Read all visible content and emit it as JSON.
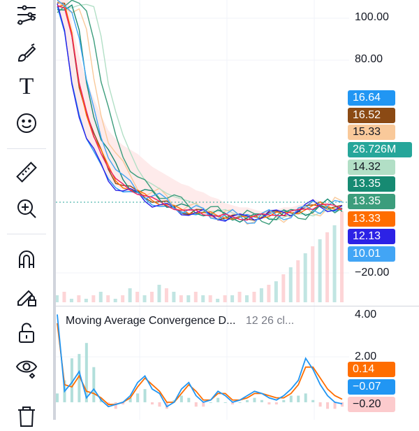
{
  "toolbar": {
    "tools": [
      {
        "name": "trend-line-tools-icon",
        "group": 1
      },
      {
        "name": "brush-icon",
        "group": 1
      },
      {
        "name": "text-tool-icon",
        "label": "T",
        "group": 1
      },
      {
        "name": "emoji-icon",
        "group": 1
      },
      {
        "name": "ruler-icon",
        "group": 2
      },
      {
        "name": "zoom-in-icon",
        "group": 2
      },
      {
        "name": "magnet-icon",
        "group": 3
      },
      {
        "name": "pencil-lock-icon",
        "group": 3
      },
      {
        "name": "unlock-icon",
        "group": 3
      },
      {
        "name": "eye-icon",
        "group": 3
      },
      {
        "name": "trash-icon",
        "group": 3
      }
    ]
  },
  "price_axis": {
    "labels": [
      "100.00",
      "80.00",
      "−20.00"
    ]
  },
  "price_badges": [
    {
      "value": "16.64",
      "color": "#2196f3"
    },
    {
      "value": "16.52",
      "color": "#8b4a14"
    },
    {
      "value": "15.33",
      "color": "#f9c99a",
      "text_color": "#131722"
    },
    {
      "value": "26.726M",
      "color": "#26a69a"
    },
    {
      "value": "14.32",
      "color": "#b2dfc6",
      "text_color": "#131722"
    },
    {
      "value": "13.35",
      "color": "#168a72"
    },
    {
      "value": "13.35",
      "color": "#3c9d7c"
    },
    {
      "value": "13.33",
      "color": "#ff6d00"
    },
    {
      "value": "12.13",
      "color": "#2c22e6"
    },
    {
      "value": "10.01",
      "color": "#42a5f5"
    }
  ],
  "macd_panel": {
    "legend_title": "Moving Average Convergence D...",
    "legend_params": "12 26 cl...",
    "axis_labels": [
      "4.00",
      "2.00"
    ],
    "badges": [
      {
        "value": "0.14",
        "color": "#ff6d00"
      },
      {
        "value": "−0.07",
        "color": "#2196f3"
      },
      {
        "value": "−0.20",
        "color": "#fccbcd",
        "text_color": "#131722"
      }
    ]
  },
  "chart_data": {
    "type": "line",
    "price_axis_ticks": [
      100,
      80,
      -20
    ],
    "price_range": [
      -32,
      111
    ],
    "last_values": {
      "ma_1": 16.64,
      "ma_2": 16.52,
      "cloud": 15.33,
      "volume": "26.726M",
      "ma_3": 14.32,
      "ma_4": 13.35,
      "ma_5": 13.35,
      "ma_6": 13.33,
      "ma_7": 12.13,
      "ma_8": 10.01
    },
    "price": [
      108,
      95,
      72,
      58,
      47,
      40,
      33,
      27,
      24,
      22,
      21,
      20,
      18,
      16,
      15,
      14,
      13,
      12,
      12,
      11,
      11,
      10,
      10,
      9,
      9,
      9,
      10,
      10,
      10,
      11,
      11,
      12,
      12,
      13,
      14,
      16,
      15,
      14,
      13,
      13
    ],
    "volume": [
      2,
      3,
      1,
      2,
      1,
      2,
      3,
      2,
      1,
      2,
      4,
      3,
      2,
      3,
      5,
      4,
      3,
      2,
      2,
      3,
      2,
      2,
      1,
      2,
      2,
      3,
      2,
      3,
      4,
      5,
      6,
      8,
      10,
      12,
      14,
      16,
      18,
      20,
      22,
      26
    ],
    "macd": {
      "axis_ticks": [
        4.0,
        2.0
      ],
      "range": [
        -0.8,
        4.3
      ],
      "last": {
        "signal": 0.14,
        "macd": -0.07,
        "histogram": -0.2
      },
      "macd_line": [
        4.0,
        0.5,
        0.9,
        1.4,
        0.2,
        0.6,
        0.1,
        -0.2,
        -0.1,
        0.0,
        0.3,
        0.9,
        1.2,
        0.6,
        0.4,
        -0.2,
        0.0,
        0.6,
        0.9,
        0.3,
        0.0,
        0.1,
        0.5,
        0.3,
        0.0,
        0.1,
        0.3,
        0.5,
        0.4,
        0.2,
        0.1,
        0.3,
        0.6,
        1.0,
        2.0,
        1.5,
        0.8,
        0.3,
        0.0,
        -0.07
      ],
      "signal_line": [
        3.6,
        0.8,
        0.7,
        1.2,
        0.5,
        0.4,
        0.2,
        -0.1,
        -0.1,
        0.0,
        0.2,
        0.7,
        1.1,
        0.8,
        0.5,
        0.0,
        0.0,
        0.4,
        0.8,
        0.5,
        0.1,
        0.1,
        0.4,
        0.4,
        0.1,
        0.1,
        0.2,
        0.4,
        0.4,
        0.3,
        0.2,
        0.2,
        0.4,
        0.8,
        1.6,
        1.6,
        1.1,
        0.6,
        0.3,
        0.14
      ],
      "histogram": [
        0.4,
        1.0,
        2.0,
        2.2,
        2.7,
        1.6,
        0.2,
        -0.2,
        -0.3,
        -0.1,
        0.2,
        0.4,
        0.6,
        -0.1,
        -0.2,
        -0.3,
        0.1,
        0.3,
        0.2,
        -0.2,
        -0.2,
        0.0,
        0.2,
        0.0,
        -0.1,
        0.0,
        0.1,
        0.2,
        0.1,
        -0.1,
        -0.1,
        0.1,
        0.3,
        0.3,
        0.4,
        0.1,
        -0.2,
        -0.3,
        -0.3,
        -0.2
      ]
    }
  }
}
